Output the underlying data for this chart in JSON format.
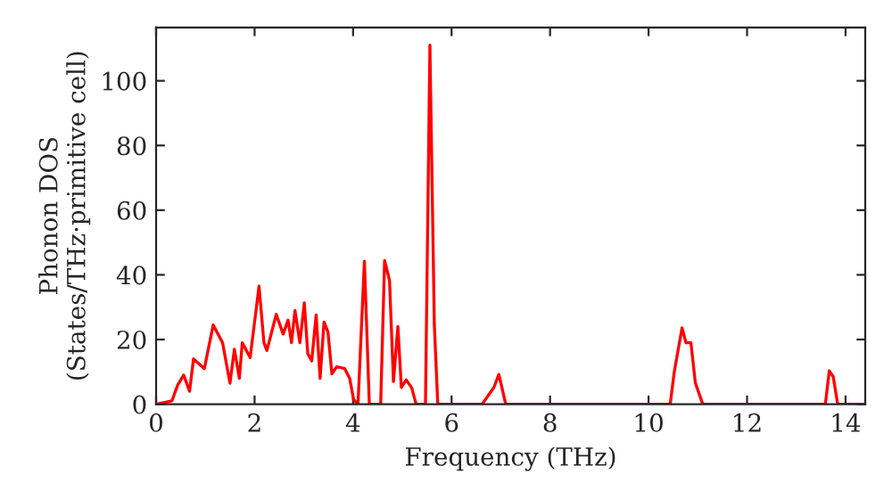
{
  "chart_data": {
    "type": "line",
    "xlabel": "Frequency (THz)",
    "ylabel": "Phonon DOS\n(States/THz·primitive cell)",
    "xlim": [
      0,
      14.4
    ],
    "ylim": [
      0,
      116.5
    ],
    "xticks": [
      0,
      2,
      4,
      6,
      8,
      10,
      12,
      14
    ],
    "yticks": [
      0,
      20,
      40,
      60,
      80,
      100
    ],
    "grid": false,
    "marker": "none",
    "line_style": "solid",
    "series": [
      {
        "color": "#ff0000",
        "x": [
          0,
          0.32,
          0.44,
          0.56,
          0.68,
          0.76,
          0.98,
          1.16,
          1.35,
          1.5,
          1.59,
          1.69,
          1.75,
          1.91,
          2.09,
          2.19,
          2.25,
          2.44,
          2.58,
          2.68,
          2.75,
          2.82,
          2.92,
          3.01,
          3.08,
          3.16,
          3.25,
          3.33,
          3.41,
          3.49,
          3.57,
          3.67,
          3.83,
          3.93,
          4.01,
          4.1,
          4.23,
          4.33,
          4.56,
          4.64,
          4.74,
          4.82,
          4.91,
          4.98,
          5.08,
          5.19,
          5.28,
          5.47,
          5.56,
          5.65,
          5.72,
          6.62,
          6.86,
          6.96,
          7.1,
          10.44,
          10.52,
          10.68,
          10.76,
          10.86,
          10.95,
          11.1,
          13.59,
          13.67,
          13.75,
          13.84,
          14.4
        ],
        "values": [
          0,
          1,
          6,
          9,
          4,
          14,
          11,
          24.5,
          19,
          6.5,
          17,
          8,
          19,
          14.4,
          36.5,
          19,
          16.6,
          27.8,
          21.7,
          26,
          19,
          29,
          19,
          31.3,
          15.6,
          13.4,
          27.6,
          8,
          25.4,
          22.3,
          9.4,
          11.6,
          11,
          8,
          1.5,
          0,
          44.2,
          0,
          0,
          44.4,
          38.3,
          7,
          24,
          5.2,
          7.5,
          5.1,
          0,
          0,
          111,
          24.5,
          0,
          0,
          5.2,
          9.2,
          0,
          0,
          9.8,
          23.6,
          19,
          19,
          6.6,
          0,
          0,
          10.3,
          8.5,
          0,
          0
        ]
      }
    ]
  }
}
